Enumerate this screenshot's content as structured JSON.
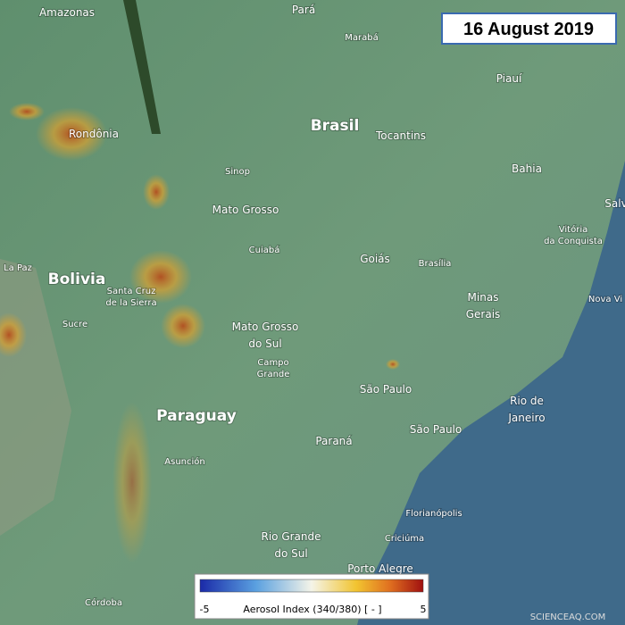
{
  "date": "16 August 2019",
  "places": [
    {
      "lines": [
        "Amazonas"
      ]
    },
    {
      "lines": [
        "Pará"
      ]
    },
    {
      "lines": [
        "Marabá"
      ]
    },
    {
      "lines": [
        "Piauí"
      ]
    },
    {
      "lines": [
        "Rondônia"
      ]
    },
    {
      "lines": [
        "Brasil"
      ]
    },
    {
      "lines": [
        "Tocantins"
      ]
    },
    {
      "lines": [
        "Bahia"
      ]
    },
    {
      "lines": [
        "Sinop"
      ]
    },
    {
      "lines": [
        "Mato Grosso"
      ]
    },
    {
      "lines": [
        "Salv"
      ]
    },
    {
      "lines": [
        "Vitória",
        "da Conquista"
      ]
    },
    {
      "lines": [
        "Cuiabá"
      ]
    },
    {
      "lines": [
        "La Paz"
      ]
    },
    {
      "lines": [
        "Bolivia"
      ]
    },
    {
      "lines": [
        "Goiás"
      ]
    },
    {
      "lines": [
        "Brasília"
      ]
    },
    {
      "lines": [
        "Santa Cruz",
        "de la Sierra"
      ]
    },
    {
      "lines": [
        "Minas",
        "Gerais"
      ]
    },
    {
      "lines": [
        "Nova Vi"
      ]
    },
    {
      "lines": [
        "Sucre"
      ]
    },
    {
      "lines": [
        "Mato Grosso",
        "do Sul"
      ]
    },
    {
      "lines": [
        "Campo",
        "Grande"
      ]
    },
    {
      "lines": [
        "São Paulo"
      ]
    },
    {
      "lines": [
        "Rio de",
        "Janeiro"
      ]
    },
    {
      "lines": [
        "Paraguay"
      ]
    },
    {
      "lines": [
        "São Paulo"
      ]
    },
    {
      "lines": [
        "Paraná"
      ]
    },
    {
      "lines": [
        "Asunción"
      ]
    },
    {
      "lines": [
        "Florianópolis"
      ]
    },
    {
      "lines": [
        "Rio Grande",
        "do Sul"
      ]
    },
    {
      "lines": [
        "Criciúma"
      ]
    },
    {
      "lines": [
        "Porto Alegre"
      ]
    },
    {
      "lines": [
        "Córdoba"
      ]
    }
  ],
  "colorbar": {
    "label": "Aerosol Index (340/380) [ - ]",
    "ticks": [
      -5,
      5
    ]
  },
  "watermark": "SCIENCEAQ.COM"
}
